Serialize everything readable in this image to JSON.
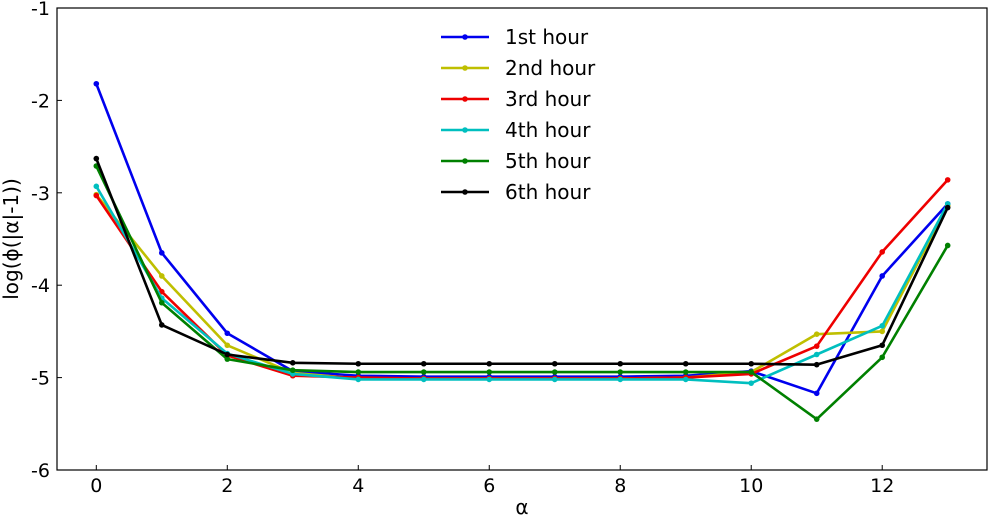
{
  "chart_data": {
    "type": "line",
    "title": "",
    "xlabel": "α",
    "ylabel": "log(ϕ(|α|-1))",
    "xlim": [
      -0.6,
      13.6
    ],
    "ylim": [
      -6,
      -1
    ],
    "xticks": [
      0,
      2,
      4,
      6,
      8,
      10,
      12
    ],
    "yticks": [
      -6,
      -5,
      -4,
      -3,
      -2,
      -1
    ],
    "xtick_labels": [
      "0",
      "2",
      "4",
      "6",
      "8",
      "10",
      "12"
    ],
    "ytick_labels": [
      "-6",
      "-5",
      "-4",
      "-3",
      "-2",
      "-1"
    ],
    "grid": false,
    "legend_position": "top-center",
    "x": [
      0,
      1,
      2,
      3,
      4,
      5,
      6,
      7,
      8,
      9,
      10,
      11,
      12,
      13
    ],
    "series": [
      {
        "name": "1st hour",
        "color": "#0000ee",
        "values": [
          -1.82,
          -3.65,
          -4.52,
          -4.93,
          -4.98,
          -4.99,
          -4.99,
          -4.99,
          -4.99,
          -4.98,
          -4.93,
          -5.17,
          -3.9,
          -3.12
        ]
      },
      {
        "name": "2nd hour",
        "color": "#bfbf00",
        "values": [
          -3.02,
          -3.9,
          -4.65,
          -4.95,
          -5.01,
          -5.01,
          -5.01,
          -5.01,
          -5.01,
          -5.0,
          -4.94,
          -4.53,
          -4.5,
          -3.14
        ]
      },
      {
        "name": "3rd hour",
        "color": "#ee0000",
        "values": [
          -3.03,
          -4.07,
          -4.76,
          -4.98,
          -5.0,
          -5.01,
          -5.01,
          -5.01,
          -5.01,
          -5.0,
          -4.96,
          -4.66,
          -3.64,
          -2.86
        ]
      },
      {
        "name": "4th hour",
        "color": "#00bfbf",
        "values": [
          -2.93,
          -4.14,
          -4.74,
          -4.96,
          -5.02,
          -5.02,
          -5.02,
          -5.02,
          -5.02,
          -5.02,
          -5.06,
          -4.75,
          -4.44,
          -3.12
        ]
      },
      {
        "name": "5th hour",
        "color": "#008000",
        "values": [
          -2.71,
          -4.19,
          -4.8,
          -4.92,
          -4.94,
          -4.94,
          -4.94,
          -4.94,
          -4.94,
          -4.94,
          -4.94,
          -5.45,
          -4.78,
          -3.57
        ]
      },
      {
        "name": "6th hour",
        "color": "#000000",
        "values": [
          -2.63,
          -4.43,
          -4.75,
          -4.84,
          -4.85,
          -4.85,
          -4.85,
          -4.85,
          -4.85,
          -4.85,
          -4.85,
          -4.86,
          -4.65,
          -3.16
        ]
      }
    ]
  }
}
